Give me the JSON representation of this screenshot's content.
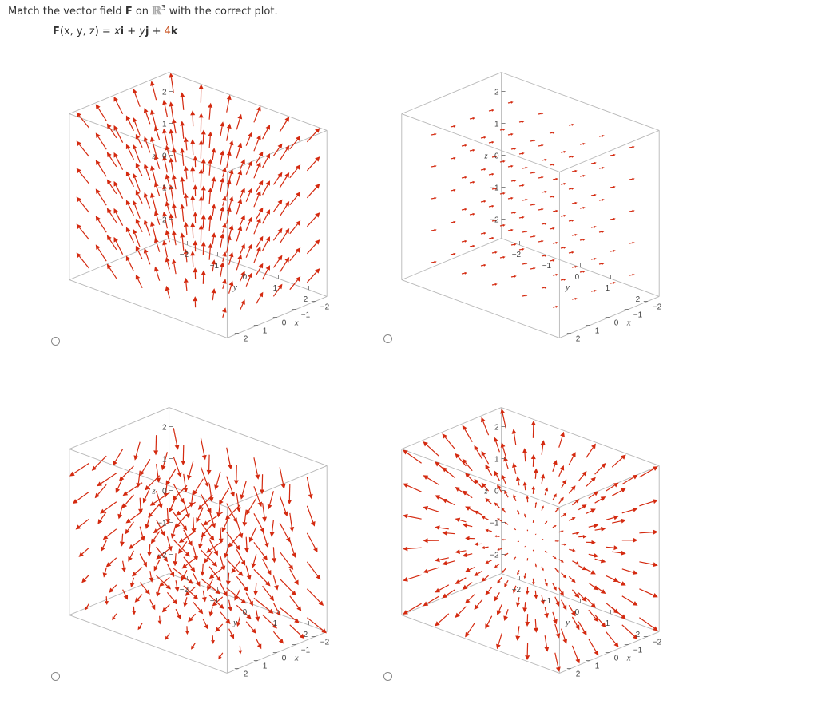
{
  "question": {
    "prefix": "Match the vector field ",
    "field_symbol": "F",
    "on_word": " on ",
    "space_symbol": "ℝ",
    "space_exponent": "3",
    "suffix": " with the correct plot."
  },
  "formula": {
    "lhs": "F",
    "args": "(x, y, z) = ",
    "x_term": "x",
    "i_vec": "i",
    "plus1": " + ",
    "y_term": "y",
    "j_vec": "j",
    "plus2": " + ",
    "coef": "4",
    "k_vec": "k"
  },
  "colors": {
    "arrow": "#d42a10",
    "box_edge": "#b8b8b8",
    "radio_border": "#888888",
    "formula_number": "#c8501e"
  },
  "axes": {
    "z_label": "z",
    "y_label": "y",
    "x_label": "x",
    "z_ticks": [
      "2",
      "1",
      "0",
      "−1",
      "−2"
    ],
    "y_ticks": [
      "−2",
      "−1",
      "0",
      "1",
      "2"
    ],
    "x_ticks": [
      "−2",
      "−1",
      "0",
      "1",
      "2"
    ]
  },
  "options": [
    {
      "id": "A",
      "field_type": "vertical-dominant (x, y, 4)",
      "selected": false
    },
    {
      "id": "B",
      "field_type": "diagonal uniform",
      "selected": false
    },
    {
      "id": "C",
      "field_type": "downward swirl",
      "selected": false
    },
    {
      "id": "D",
      "field_type": "radial outward",
      "selected": false
    }
  ]
}
